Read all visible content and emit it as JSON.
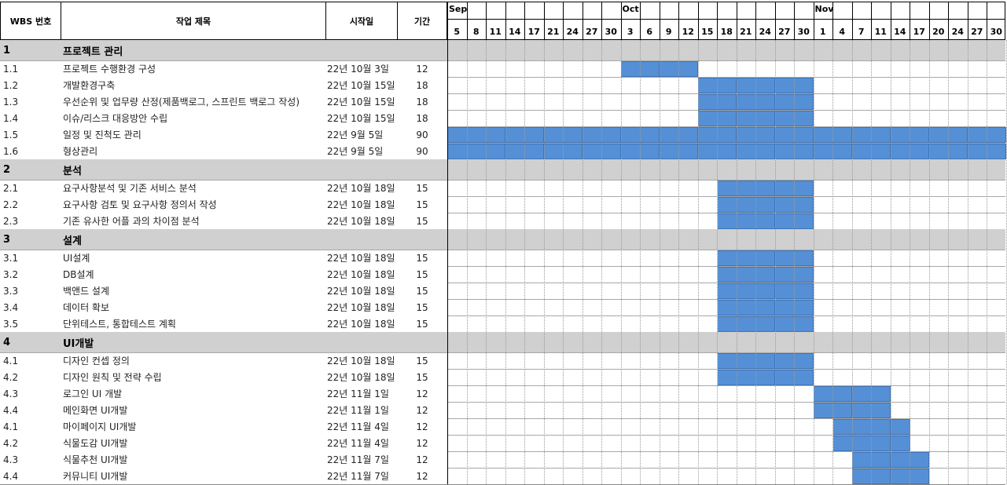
{
  "headers": {
    "wbs": "WBS 번호",
    "task": "작업 제목",
    "start": "시작일",
    "duration": "기간"
  },
  "timeline": {
    "months": [
      {
        "label": "Sep",
        "first_day": "5"
      },
      {
        "label": "Oct",
        "first_day": "3"
      },
      {
        "label": "Nov",
        "first_day": "1"
      }
    ],
    "days": [
      "5",
      "8",
      "11",
      "14",
      "17",
      "21",
      "24",
      "27",
      "30",
      "3",
      "6",
      "9",
      "12",
      "15",
      "18",
      "21",
      "24",
      "27",
      "30",
      "1",
      "4",
      "7",
      "11",
      "14",
      "17",
      "20",
      "24",
      "27",
      "30"
    ]
  },
  "colors": {
    "bar": "#5590d6",
    "section_band": "#d0d0d0"
  },
  "rows": [
    {
      "kind": "section",
      "wbs": "1",
      "task": "프로젝트 관리"
    },
    {
      "kind": "task",
      "wbs": "1.1",
      "task": "프로젝트 수행환경 구성",
      "start": "22년 10월 3일",
      "duration": "12",
      "bar": [
        9,
        12
      ]
    },
    {
      "kind": "task",
      "wbs": "1.2",
      "task": "개발환경구축",
      "start": "22년 10월 15일",
      "duration": "18",
      "bar": [
        13,
        18
      ]
    },
    {
      "kind": "task",
      "wbs": "1.3",
      "task": "우선순위 및 업무량 산정(제품백로그, 스프린트 백로그 작성)",
      "start": "22년 10월 15일",
      "duration": "18",
      "bar": [
        13,
        18
      ]
    },
    {
      "kind": "task",
      "wbs": "1.4",
      "task": "이슈/리스크 대응방안 수립",
      "start": "22년 10월 15일",
      "duration": "18",
      "bar": [
        13,
        18
      ]
    },
    {
      "kind": "task",
      "wbs": "1.5",
      "task": "일정 및 진척도 관리",
      "start": "22년 9월 5일",
      "duration": "90",
      "bar": [
        0,
        28
      ]
    },
    {
      "kind": "task",
      "wbs": "1.6",
      "task": "형상관리",
      "start": "22년 9월 5일",
      "duration": "90",
      "bar": [
        0,
        28
      ]
    },
    {
      "kind": "section",
      "wbs": "2",
      "task": "분석"
    },
    {
      "kind": "task",
      "wbs": "2.1",
      "task": "요구사항분석 및 기존 서비스 분석",
      "start": "22년 10월 18일",
      "duration": "15",
      "bar": [
        14,
        18
      ]
    },
    {
      "kind": "task",
      "wbs": "2.2",
      "task": "요구사항 검토 및 요구사항 정의서 작성",
      "start": "22년 10월 18일",
      "duration": "15",
      "bar": [
        14,
        18
      ]
    },
    {
      "kind": "task",
      "wbs": "2.3",
      "task": "기존 유사한 어플 과의 차이점 분석",
      "start": "22년 10월 18일",
      "duration": "15",
      "bar": [
        14,
        18
      ]
    },
    {
      "kind": "section",
      "wbs": "3",
      "task": "설계"
    },
    {
      "kind": "task",
      "wbs": "3.1",
      "task": "UI설계",
      "start": "22년 10월 18일",
      "duration": "15",
      "bar": [
        14,
        18
      ]
    },
    {
      "kind": "task",
      "wbs": "3.2",
      "task": "DB설계",
      "start": "22년 10월 18일",
      "duration": "15",
      "bar": [
        14,
        18
      ]
    },
    {
      "kind": "task",
      "wbs": "3.3",
      "task": "백앤드 설계",
      "start": "22년 10월 18일",
      "duration": "15",
      "bar": [
        14,
        18
      ]
    },
    {
      "kind": "task",
      "wbs": "3.4",
      "task": "데이터 확보",
      "start": "22년 10월 18일",
      "duration": "15",
      "bar": [
        14,
        18
      ]
    },
    {
      "kind": "task",
      "wbs": "3.5",
      "task": "단위테스트, 통합테스트 계획",
      "start": "22년 10월 18일",
      "duration": "15",
      "bar": [
        14,
        18
      ]
    },
    {
      "kind": "section",
      "wbs": "4",
      "task": "UI개발"
    },
    {
      "kind": "task",
      "wbs": "4.1",
      "task": "디자인 컨셉 정의",
      "start": "22년 10월 18일",
      "duration": "15",
      "bar": [
        14,
        18
      ]
    },
    {
      "kind": "task",
      "wbs": "4.2",
      "task": "디자인 원칙 및 전략 수립",
      "start": "22년 10월 18일",
      "duration": "15",
      "bar": [
        14,
        18
      ]
    },
    {
      "kind": "task",
      "wbs": "4.3",
      "task": "로그인 UI 개발",
      "start": "22년 11월 1일",
      "duration": "12",
      "bar": [
        19,
        22
      ]
    },
    {
      "kind": "task",
      "wbs": "4.4",
      "task": "메인화면 UI개발",
      "start": "22년 11월 1일",
      "duration": "12",
      "bar": [
        19,
        22
      ]
    },
    {
      "kind": "task",
      "wbs": "4.1",
      "task": "마이페이지 UI개발",
      "start": "22년 11월 4일",
      "duration": "12",
      "bar": [
        20,
        23
      ]
    },
    {
      "kind": "task",
      "wbs": "4.2",
      "task": "식물도감 UI개발",
      "start": "22년 11월 4일",
      "duration": "12",
      "bar": [
        20,
        23
      ]
    },
    {
      "kind": "task",
      "wbs": "4.3",
      "task": "식물추천 UI개발",
      "start": "22년 11월 7일",
      "duration": "12",
      "bar": [
        21,
        24
      ]
    },
    {
      "kind": "task",
      "wbs": "4.4",
      "task": "커뮤니티 UI개발",
      "start": "22년 11월 7일",
      "duration": "12",
      "bar": [
        21,
        24
      ]
    }
  ],
  "chart_data": {
    "type": "bar",
    "subtype": "gantt",
    "x_axis": "timeline (2022-09-05 to 2022-11-30)",
    "tasks": [
      {
        "wbs": "1.1",
        "name": "프로젝트 수행환경 구성",
        "start": "2022-10-03",
        "duration": 12
      },
      {
        "wbs": "1.2",
        "name": "개발환경구축",
        "start": "2022-10-15",
        "duration": 18
      },
      {
        "wbs": "1.3",
        "name": "우선순위 및 업무량 산정(제품백로그, 스프린트 백로그 작성)",
        "start": "2022-10-15",
        "duration": 18
      },
      {
        "wbs": "1.4",
        "name": "이슈/리스크 대응방안 수립",
        "start": "2022-10-15",
        "duration": 18
      },
      {
        "wbs": "1.5",
        "name": "일정 및 진척도 관리",
        "start": "2022-09-05",
        "duration": 90
      },
      {
        "wbs": "1.6",
        "name": "형상관리",
        "start": "2022-09-05",
        "duration": 90
      },
      {
        "wbs": "2.1",
        "name": "요구사항분석 및 기존 서비스 분석",
        "start": "2022-10-18",
        "duration": 15
      },
      {
        "wbs": "2.2",
        "name": "요구사항 검토 및 요구사항 정의서 작성",
        "start": "2022-10-18",
        "duration": 15
      },
      {
        "wbs": "2.3",
        "name": "기존 유사한 어플 과의 차이점 분석",
        "start": "2022-10-18",
        "duration": 15
      },
      {
        "wbs": "3.1",
        "name": "UI설계",
        "start": "2022-10-18",
        "duration": 15
      },
      {
        "wbs": "3.2",
        "name": "DB설계",
        "start": "2022-10-18",
        "duration": 15
      },
      {
        "wbs": "3.3",
        "name": "백앤드 설계",
        "start": "2022-10-18",
        "duration": 15
      },
      {
        "wbs": "3.4",
        "name": "데이터 확보",
        "start": "2022-10-18",
        "duration": 15
      },
      {
        "wbs": "3.5",
        "name": "단위테스트, 통합테스트 계획",
        "start": "2022-10-18",
        "duration": 15
      },
      {
        "wbs": "4.1",
        "name": "디자인 컨셉 정의",
        "start": "2022-10-18",
        "duration": 15
      },
      {
        "wbs": "4.2",
        "name": "디자인 원칙 및 전략 수립",
        "start": "2022-10-18",
        "duration": 15
      },
      {
        "wbs": "4.3",
        "name": "로그인 UI 개발",
        "start": "2022-11-01",
        "duration": 12
      },
      {
        "wbs": "4.4",
        "name": "메인화면 UI개발",
        "start": "2022-11-01",
        "duration": 12
      },
      {
        "wbs": "4.1",
        "name": "마이페이지 UI개발",
        "start": "2022-11-04",
        "duration": 12
      },
      {
        "wbs": "4.2",
        "name": "식물도감 UI개발",
        "start": "2022-11-04",
        "duration": 12
      },
      {
        "wbs": "4.3",
        "name": "식물추천 UI개발",
        "start": "2022-11-07",
        "duration": 12
      },
      {
        "wbs": "4.4",
        "name": "커뮤니티 UI개발",
        "start": "2022-11-07",
        "duration": 12
      }
    ]
  }
}
